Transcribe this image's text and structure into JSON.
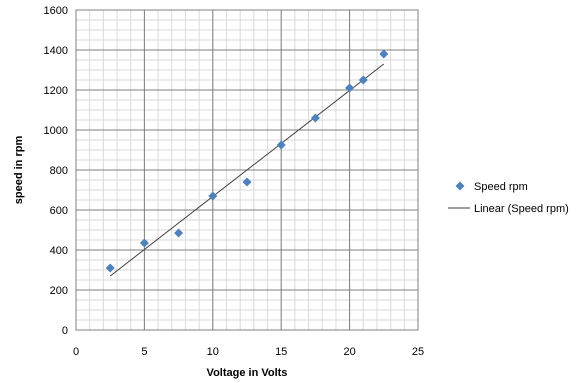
{
  "chart_data": {
    "type": "scatter",
    "xlabel": "Voltage in Volts",
    "ylabel": "speed in rpm",
    "xlim": [
      0,
      25
    ],
    "ylim": [
      0,
      1600
    ],
    "x_ticks": [
      0,
      5,
      10,
      15,
      20,
      25
    ],
    "y_ticks": [
      0,
      200,
      400,
      600,
      800,
      1000,
      1200,
      1400,
      1600
    ],
    "grid": true,
    "legend_position": "right",
    "series": [
      {
        "name": "Speed rpm",
        "marker": "diamond",
        "color": "#4F81BD",
        "points": [
          {
            "x": 2.5,
            "y": 310
          },
          {
            "x": 5,
            "y": 435
          },
          {
            "x": 7.5,
            "y": 485
          },
          {
            "x": 10,
            "y": 670
          },
          {
            "x": 12.5,
            "y": 740
          },
          {
            "x": 15,
            "y": 925
          },
          {
            "x": 17.5,
            "y": 1060
          },
          {
            "x": 20,
            "y": 1210
          },
          {
            "x": 21,
            "y": 1250
          },
          {
            "x": 22.5,
            "y": 1380
          }
        ]
      }
    ],
    "trendline": {
      "name": "Linear (Speed rpm)",
      "type": "linear",
      "color": "#404040",
      "x_range": [
        2.5,
        22.5
      ],
      "y_range": [
        270,
        1330
      ]
    }
  }
}
